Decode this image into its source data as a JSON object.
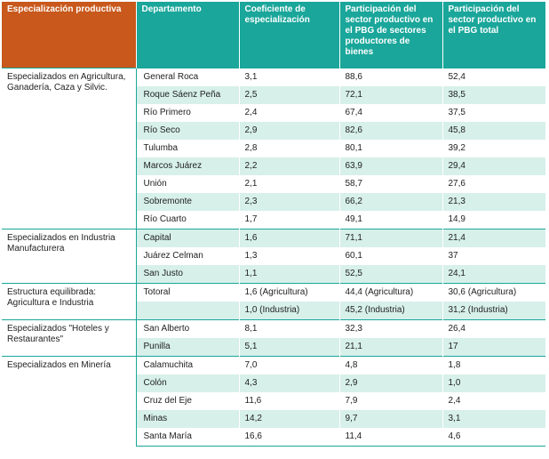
{
  "headers": [
    "Especialización productiva",
    "Departamento",
    "Coeficiente de especialización",
    "Participación del sector productivo en el PBG de sectores productores de bienes",
    "Participación del sector productivo en el PBG total"
  ],
  "groups": [
    "Especializados en Agricultura, Ganadería, Caza y Silvic.",
    "Especializados en Industria Manufacturera",
    "Estructura equilibrada: Agricultura e Industria",
    "Especializados \"Hoteles y Restaurantes\"",
    "Especializados en Minería"
  ],
  "rows": [
    [
      "General Roca",
      "3,1",
      "88,6",
      "52,4"
    ],
    [
      "Roque Sáenz Peña",
      "2,5",
      "72,1",
      "38,5"
    ],
    [
      "Río Primero",
      "2,4",
      "67,4",
      "37,5"
    ],
    [
      "Río Seco",
      "2,9",
      "82,6",
      "45,8"
    ],
    [
      "Tulumba",
      "2,8",
      "80,1",
      "39,2"
    ],
    [
      "Marcos Juárez",
      "2,2",
      "63,9",
      "29,4"
    ],
    [
      "Unión",
      "2,1",
      "58,7",
      "27,6"
    ],
    [
      "Sobremonte",
      "2,3",
      "66,2",
      "21,3"
    ],
    [
      "Río Cuarto",
      "1,7",
      "49,1",
      "14,9"
    ],
    [
      "Capital",
      "1,6",
      "71,1",
      "21,4"
    ],
    [
      "Juárez Celman",
      "1,3",
      "60,1",
      "37"
    ],
    [
      "San Justo",
      "1,1",
      "52,5",
      "24,1"
    ],
    [
      "Totoral",
      "1,6 (Agricultura)",
      "44,4 (Agricultura)",
      "30,6 (Agricultura)"
    ],
    [
      "",
      "1,0 (Industria)",
      "45,2 (Industria)",
      "31,2 (Industria)"
    ],
    [
      "San Alberto",
      "8,1",
      "32,3",
      "26,4"
    ],
    [
      "Punilla",
      "5,1",
      "21,1",
      "17"
    ],
    [
      "Calamuchita",
      "7,0",
      "4,8",
      "1,8"
    ],
    [
      "Colón",
      "4,3",
      "2,9",
      "1,0"
    ],
    [
      "Cruz del Eje",
      "11,6",
      "7,9",
      "2,4"
    ],
    [
      "Minas",
      "14,2",
      "9,7",
      "3,1"
    ],
    [
      "Santa María",
      "16,6",
      "11,4",
      "4,6"
    ]
  ]
}
